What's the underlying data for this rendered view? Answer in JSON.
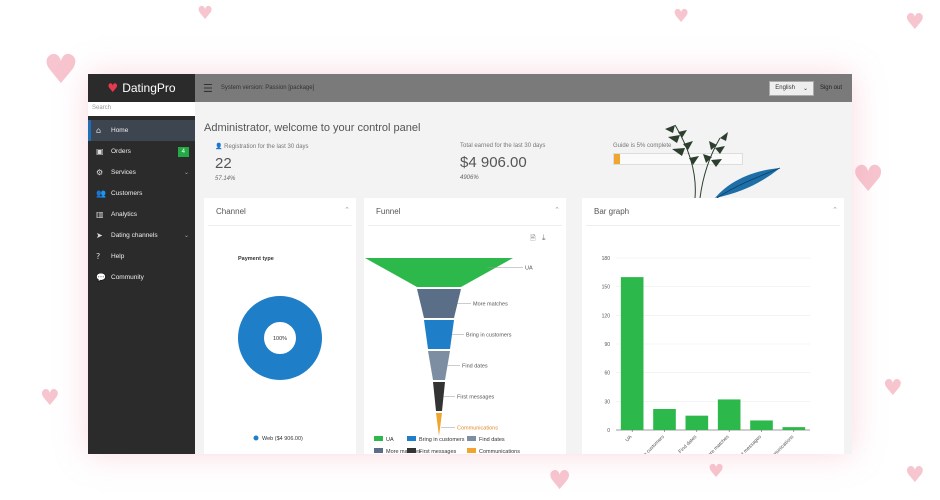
{
  "app": {
    "logo_text": "DatingPro",
    "search_placeholder": "Search"
  },
  "sidebar": {
    "items": [
      {
        "label": "Home",
        "icon": "home-icon",
        "active": true
      },
      {
        "label": "Orders",
        "icon": "orders-icon",
        "badge": "4"
      },
      {
        "label": "Services",
        "icon": "gear-icon",
        "expandable": true
      },
      {
        "label": "Customers",
        "icon": "users-icon"
      },
      {
        "label": "Analytics",
        "icon": "chart-icon"
      },
      {
        "label": "Dating channels",
        "icon": "channels-icon",
        "expandable": true
      },
      {
        "label": "Help",
        "icon": "help-icon"
      },
      {
        "label": "Community",
        "icon": "chat-icon"
      }
    ]
  },
  "topbar": {
    "system_version": "System version: Passion [package]",
    "language": "English",
    "sign_out": "Sign out"
  },
  "dashboard": {
    "welcome": "Administrator, welcome to your control panel",
    "registration_label": "Registration for the last 30 days",
    "registration_value": "22",
    "registration_pct": "57.14%",
    "earned_label": "Total earned for the last 30 days",
    "earned_value": "$4 906.00",
    "earned_pct": "4906%",
    "guide_label": "Guide is 5% complete",
    "guide_progress": 0.05
  },
  "cards": {
    "channel_title": "Channel",
    "funnel_title": "Funnel",
    "bar_title": "Bar graph"
  },
  "chart_data": [
    {
      "type": "pie",
      "title": "Payment type",
      "labels": [
        "Web ($4 906.00)"
      ],
      "values": [
        100
      ],
      "center_label": "100%",
      "colors": [
        "#1e7ec8"
      ],
      "legend": "bottom"
    },
    {
      "type": "funnel",
      "categories": [
        "UA",
        "More matches",
        "Bring in customers",
        "Find dates",
        "First messages",
        "Communications"
      ],
      "values": [
        160,
        32,
        22,
        15,
        10,
        3
      ],
      "colors": [
        "#2db84b",
        "#5a6e88",
        "#1e7ec8",
        "#7e8ea2",
        "#333333",
        "#f0a530"
      ],
      "legend_labels": [
        "UA",
        "Bring in customers",
        "Find dates",
        "More matches",
        "First messages",
        "Communications"
      ],
      "legend_colors": [
        "#2db84b",
        "#1e7ec8",
        "#7e8ea2",
        "#5a6e88",
        "#333333",
        "#f0a530"
      ],
      "legend": "bottom"
    },
    {
      "type": "bar",
      "categories": [
        "UA",
        "Bring in customers",
        "Find dates",
        "More matches",
        "First messages",
        "Communications"
      ],
      "values": [
        160,
        22,
        15,
        32,
        10,
        3
      ],
      "yticks": [
        "0",
        "30",
        "60",
        "90",
        "120",
        "150",
        "180"
      ],
      "ylim": [
        0,
        180
      ],
      "color": "#2db84b"
    }
  ]
}
